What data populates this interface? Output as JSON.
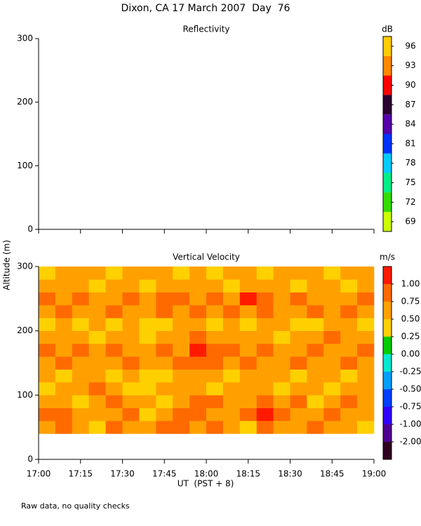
{
  "title": "Dixon, CA 17 March 2007  Day  76",
  "ylabel": "Altitude (m)",
  "xlabel": "UT  (PST + 8)",
  "note": "Raw data, no quality checks",
  "chart_data": [
    {
      "type": "heatmap",
      "title": "Reflectivity",
      "xlim": [
        17,
        19
      ],
      "xticks": [
        17,
        17.25,
        17.5,
        17.75,
        18,
        18.25,
        18.5,
        18.75,
        19
      ],
      "ylim": [
        0,
        300
      ],
      "yticks": [
        0,
        100,
        200,
        300
      ],
      "colorbar": {
        "label": "dB",
        "ticks_at": "centers",
        "colors": [
          "#ccff00",
          "#33dd00",
          "#00ee88",
          "#00ccff",
          "#0033ff",
          "#5500aa",
          "#2a0030",
          "#ff0000",
          "#ff8800",
          "#ffcc00"
        ],
        "ticks": [
          69,
          72,
          75,
          78,
          81,
          84,
          87,
          90,
          93,
          96
        ]
      }
    },
    {
      "type": "heatmap",
      "title": "Vertical Velocity",
      "xlim": [
        17,
        19
      ],
      "xticks": [
        {
          "value": 17,
          "label": "17:00"
        },
        {
          "value": 17.25,
          "label": "17:15"
        },
        {
          "value": 17.5,
          "label": "17:30"
        },
        {
          "value": 17.75,
          "label": "17:45"
        },
        {
          "value": 18,
          "label": "18:00"
        },
        {
          "value": 18.25,
          "label": "18:15"
        },
        {
          "value": 18.5,
          "label": "18:30"
        },
        {
          "value": 18.75,
          "label": "18:45"
        },
        {
          "value": 19,
          "label": "19:00"
        }
      ],
      "ylim": [
        0,
        300
      ],
      "yticks": [
        0,
        100,
        200,
        300
      ],
      "colorbar": {
        "label": "m/s",
        "ticks_at": "edges",
        "colors": [
          "#300020",
          "#500090",
          "#3000ff",
          "#0040ff",
          "#00a0ff",
          "#00e8d0",
          "#00cc00",
          "#ffd000",
          "#ffa000",
          "#ff6a00",
          "#ff1a00"
        ],
        "ticks": [
          {
            "value": -2,
            "label": "-2.00"
          },
          {
            "value": -1,
            "label": "-1.00"
          },
          {
            "value": -0.75,
            "label": "-0.75"
          },
          {
            "value": -0.5,
            "label": "-0.50"
          },
          {
            "value": -0.25,
            "label": "-0.25"
          },
          {
            "value": 0,
            "label": "0.00"
          },
          {
            "value": 0.25,
            "label": "0.25"
          },
          {
            "value": 0.5,
            "label": "0.50"
          },
          {
            "value": 0.75,
            "label": "0.75"
          },
          {
            "value": 1,
            "label": "1.00"
          }
        ]
      },
      "xbins": [
        17,
        17.1,
        17.2,
        17.3,
        17.4,
        17.5,
        17.6,
        17.7,
        17.8,
        17.9,
        18,
        18.1,
        18.2,
        18.3,
        18.4,
        18.5,
        18.6,
        18.7,
        18.8,
        18.9,
        19
      ],
      "ybins": [
        40,
        60,
        80,
        100,
        120,
        140,
        160,
        180,
        200,
        220,
        240,
        260,
        280,
        300
      ],
      "values": [
        [
          0.6,
          0.85,
          0.6,
          0.4,
          0.85,
          0.6,
          0.6,
          0.85,
          0.85,
          0.6,
          0.85,
          0.6,
          0.4,
          0.85,
          0.6,
          0.6,
          0.85,
          0.6,
          0.6,
          0.4
        ],
        [
          0.85,
          0.85,
          0.6,
          0.6,
          0.6,
          0.85,
          0.4,
          0.6,
          0.85,
          0.85,
          0.6,
          0.6,
          0.85,
          1.05,
          0.85,
          0.6,
          0.6,
          0.85,
          0.6,
          0.6
        ],
        [
          0.6,
          0.6,
          0.4,
          0.6,
          0.85,
          0.6,
          0.6,
          0.4,
          0.6,
          0.85,
          0.85,
          0.6,
          0.6,
          0.85,
          0.6,
          0.85,
          0.4,
          0.6,
          0.85,
          0.6
        ],
        [
          0.4,
          0.6,
          0.6,
          0.85,
          0.6,
          0.4,
          0.4,
          0.6,
          0.6,
          0.6,
          0.4,
          0.6,
          0.6,
          0.6,
          0.4,
          0.6,
          0.6,
          0.4,
          0.6,
          0.6
        ],
        [
          0.6,
          0.4,
          0.6,
          0.6,
          0.4,
          0.6,
          0.4,
          0.4,
          0.6,
          0.6,
          0.6,
          0.4,
          0.6,
          0.6,
          0.6,
          0.4,
          0.6,
          0.6,
          0.4,
          0.6
        ],
        [
          0.6,
          0.85,
          0.6,
          0.6,
          0.6,
          0.85,
          0.6,
          0.6,
          0.85,
          0.85,
          0.85,
          0.6,
          0.85,
          0.6,
          0.6,
          0.85,
          0.6,
          0.6,
          0.85,
          0.6
        ],
        [
          0.85,
          0.6,
          0.85,
          0.6,
          0.85,
          0.6,
          0.6,
          0.85,
          0.6,
          1.05,
          0.85,
          0.85,
          0.6,
          0.85,
          0.6,
          0.6,
          0.85,
          0.6,
          0.6,
          0.85
        ],
        [
          0.6,
          0.6,
          0.6,
          0.4,
          0.6,
          0.6,
          0.4,
          0.6,
          0.6,
          0.85,
          0.6,
          0.6,
          0.6,
          0.6,
          0.4,
          0.6,
          0.6,
          0.85,
          0.6,
          0.6
        ],
        [
          0.4,
          0.6,
          0.4,
          0.6,
          0.4,
          0.6,
          0.4,
          0.4,
          0.6,
          0.6,
          0.4,
          0.6,
          0.4,
          0.6,
          0.6,
          0.4,
          0.4,
          0.6,
          0.6,
          0.4
        ],
        [
          0.6,
          0.85,
          0.6,
          0.6,
          0.85,
          0.6,
          0.6,
          0.85,
          0.6,
          0.85,
          0.6,
          0.85,
          0.6,
          0.85,
          0.6,
          0.6,
          0.85,
          0.6,
          0.85,
          0.6
        ],
        [
          0.85,
          0.6,
          0.85,
          0.6,
          0.6,
          0.85,
          0.6,
          0.85,
          0.85,
          0.6,
          0.85,
          0.6,
          1.05,
          0.85,
          0.6,
          0.85,
          0.6,
          0.6,
          0.6,
          0.85
        ],
        [
          0.6,
          0.6,
          0.6,
          0.4,
          0.6,
          0.6,
          0.4,
          0.6,
          0.6,
          0.6,
          0.6,
          0.4,
          0.6,
          0.6,
          0.6,
          0.4,
          0.6,
          0.6,
          0.4,
          0.6
        ],
        [
          0.4,
          0.6,
          0.6,
          0.6,
          0.4,
          0.6,
          0.6,
          0.6,
          0.4,
          0.6,
          0.4,
          0.6,
          0.6,
          0.4,
          0.6,
          0.6,
          0.6,
          0.4,
          0.6,
          0.6
        ]
      ]
    }
  ]
}
